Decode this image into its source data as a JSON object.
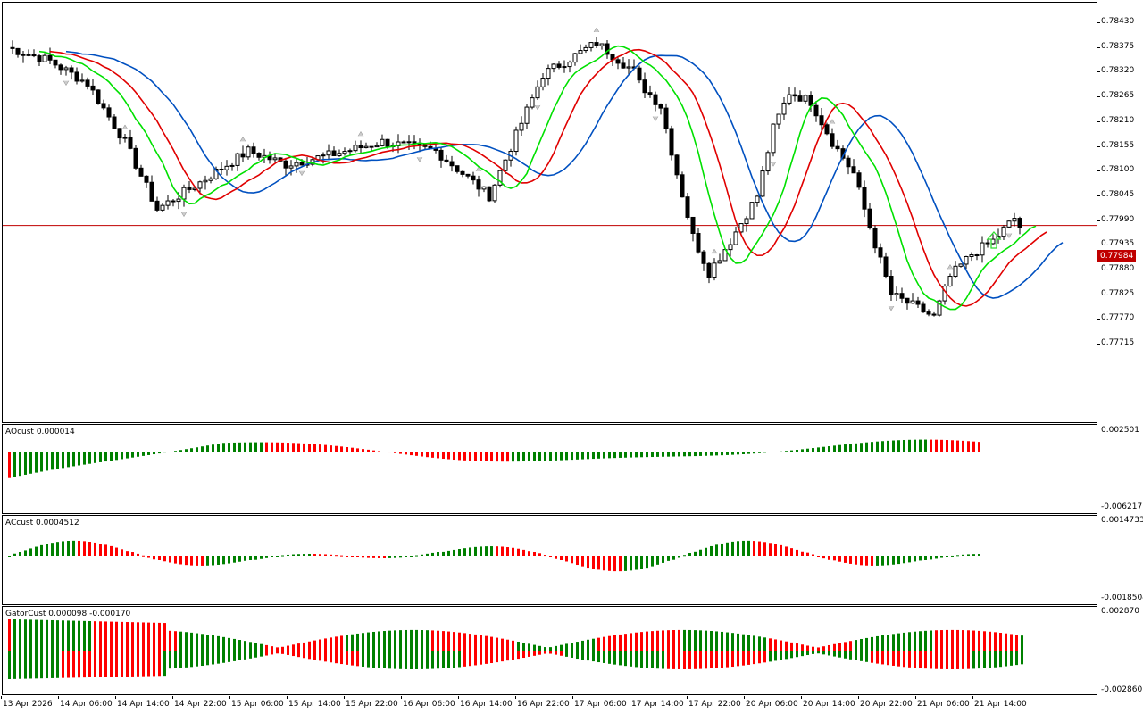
{
  "main_chart": {
    "price_axis": [
      "0.78430",
      "0.78375",
      "0.78320",
      "0.78265",
      "0.78210",
      "0.78155",
      "0.78100",
      "0.78045",
      "0.77990",
      "0.77935",
      "0.77880",
      "0.77825",
      "0.77770",
      "0.77715"
    ],
    "current_price": "0.77984",
    "price_line_color": "#c00000",
    "ma_colors": {
      "fast": "#00e000",
      "medium": "#e00000",
      "slow": "#0050c0"
    },
    "signal_arrow": "up-arrow-icon"
  },
  "ao": {
    "title": "AOcust 0.000014",
    "max": "0.002501",
    "min": "-0.006217"
  },
  "ac": {
    "title": "ACcust 0.0004512",
    "max": "0.0014733",
    "min": "-0.0018504"
  },
  "gator": {
    "title": "GatorCust 0.000098 -0.000170",
    "max": "0.002870",
    "min": "-0.002860"
  },
  "time_axis": [
    "13 Apr 2026",
    "14 Apr 06:00",
    "14 Apr 14:00",
    "14 Apr 22:00",
    "15 Apr 06:00",
    "15 Apr 14:00",
    "15 Apr 22:00",
    "16 Apr 06:00",
    "16 Apr 14:00",
    "16 Apr 22:00",
    "17 Apr 06:00",
    "17 Apr 14:00",
    "17 Apr 22:00",
    "20 Apr 06:00",
    "20 Apr 14:00",
    "20 Apr 22:00",
    "21 Apr 06:00",
    "21 Apr 14:00"
  ],
  "colors": {
    "up": "#008000",
    "down": "#ff0000"
  }
}
